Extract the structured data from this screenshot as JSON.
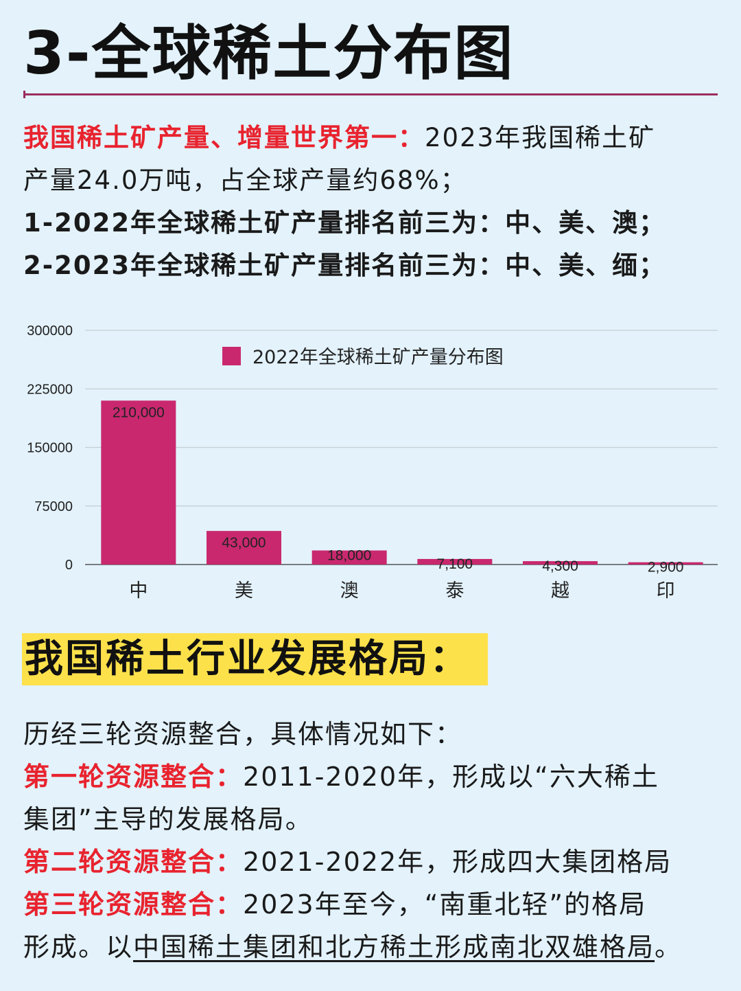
{
  "title": "3-全球稀土分布图",
  "intro": {
    "lead_red": "我国稀土矿产量、增量世界第一：",
    "lead_rest": "2023年我国稀土矿",
    "line2": "产量24.0万吨，占全球产量约68%；",
    "line3": "1-2022年全球稀土矿产量排名前三为：中、美、澳；",
    "line4": "2-2023年全球稀土矿产量排名前三为：中、美、缅；"
  },
  "chart_data": {
    "type": "bar",
    "categories": [
      "中",
      "美",
      "澳",
      "泰",
      "越",
      "印"
    ],
    "series": [
      {
        "name": "2022年全球稀土矿产量分布图",
        "values": [
          210000,
          43000,
          18000,
          7100,
          4300,
          2900
        ]
      }
    ],
    "data_labels": [
      "210,000",
      "43,000",
      "18,000",
      "7,100",
      "4,300",
      "2,900"
    ],
    "yticks": [
      "0",
      "75000",
      "150000",
      "225000",
      "300000"
    ],
    "ylim": [
      0,
      300000
    ],
    "grid": true,
    "legend_position": "top-center",
    "bar_color": "#c9286f"
  },
  "section2": {
    "heading": "我国稀土行业发展格局：",
    "line1": "历经三轮资源整合，具体情况如下：",
    "r1_label": "第一轮资源整合：",
    "r1_text": "2011-2020年，形成以“六大稀土",
    "r1_cont": "集团”主导的发展格局。",
    "r2_label": "第二轮资源整合：",
    "r2_text": "2021-2022年，形成四大集团格局",
    "r3_label": "第三轮资源整合：",
    "r3_text": "2023年至今，“南重北轻”的格局",
    "r3_cont_a": "形成。以",
    "r3_cont_u": "中国稀土集团和北方稀土形成南北双雄格局",
    "r3_cont_b": "。"
  }
}
